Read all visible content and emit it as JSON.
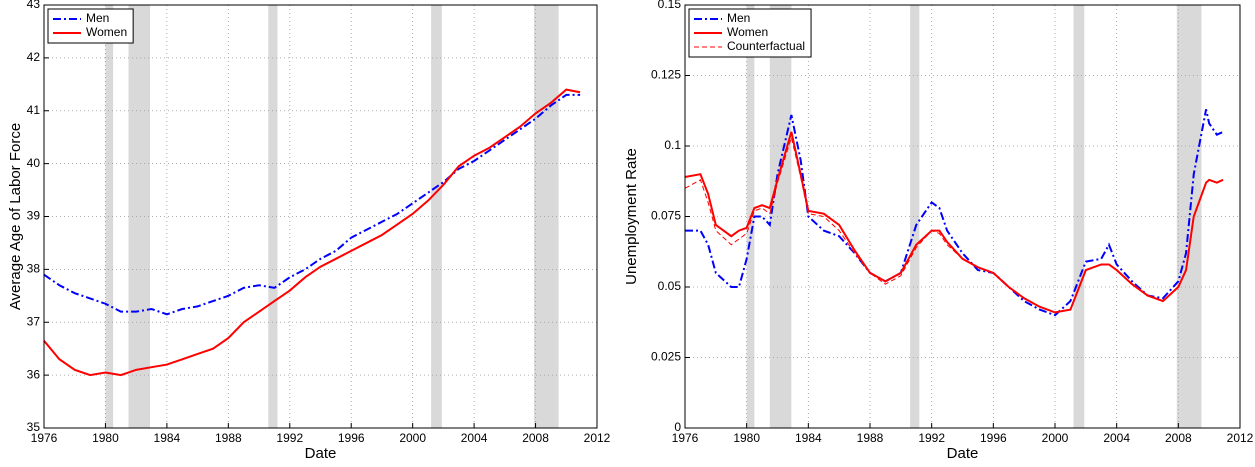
{
  "chart_data": [
    {
      "type": "line",
      "xlabel": "Date",
      "ylabel": "Average Age of Labor Force",
      "xlim": [
        1976,
        2012
      ],
      "xticks": [
        1976,
        1980,
        1984,
        1988,
        1992,
        1996,
        2000,
        2004,
        2008,
        2012
      ],
      "ylim": [
        35,
        43
      ],
      "yticks": [
        35,
        36,
        37,
        38,
        39,
        40,
        41,
        42,
        43
      ],
      "grid": true,
      "legend": "upper left",
      "recession_color": "#d9d9d9",
      "recessions": [
        [
          1980.0,
          1980.5
        ],
        [
          1981.5,
          1982.9
        ],
        [
          1990.6,
          1991.2
        ],
        [
          2001.2,
          2001.9
        ],
        [
          2007.9,
          2009.5
        ]
      ],
      "x": [
        1976,
        1977,
        1978,
        1979,
        1980,
        1981,
        1982,
        1983,
        1984,
        1985,
        1986,
        1987,
        1988,
        1989,
        1990,
        1991,
        1992,
        1993,
        1994,
        1995,
        1996,
        1997,
        1998,
        1999,
        2000,
        2001,
        2002,
        2003,
        2004,
        2005,
        2006,
        2007,
        2008,
        2009,
        2010,
        2010.9
      ],
      "series": [
        {
          "name": "Men",
          "color": "#0000ff",
          "style": "dashdot",
          "values": [
            37.9,
            37.7,
            37.55,
            37.45,
            37.35,
            37.2,
            37.2,
            37.25,
            37.15,
            37.25,
            37.3,
            37.4,
            37.5,
            37.65,
            37.7,
            37.65,
            37.85,
            38.0,
            38.2,
            38.35,
            38.6,
            38.75,
            38.9,
            39.05,
            39.25,
            39.45,
            39.65,
            39.9,
            40.05,
            40.25,
            40.45,
            40.65,
            40.85,
            41.1,
            41.3,
            41.3
          ]
        },
        {
          "name": "Women",
          "color": "#ff0000",
          "style": "solid",
          "values": [
            36.65,
            36.3,
            36.1,
            36.0,
            36.05,
            36.0,
            36.1,
            36.15,
            36.2,
            36.3,
            36.4,
            36.5,
            36.7,
            37.0,
            37.2,
            37.4,
            37.6,
            37.85,
            38.05,
            38.2,
            38.35,
            38.5,
            38.65,
            38.85,
            39.05,
            39.3,
            39.6,
            39.95,
            40.15,
            40.3,
            40.5,
            40.7,
            40.95,
            41.15,
            41.4,
            41.35
          ]
        }
      ]
    },
    {
      "type": "line",
      "xlabel": "Date",
      "ylabel": "Unemployment Rate",
      "xlim": [
        1976,
        2012
      ],
      "xticks": [
        1976,
        1980,
        1984,
        1988,
        1992,
        1996,
        2000,
        2004,
        2008,
        2012
      ],
      "ylim": [
        0,
        0.15
      ],
      "yticks": [
        0,
        0.025,
        0.05,
        0.075,
        0.1,
        0.125,
        0.15
      ],
      "grid": true,
      "legend": "upper left",
      "recession_color": "#d9d9d9",
      "recessions": [
        [
          1980.0,
          1980.5
        ],
        [
          1981.5,
          1982.9
        ],
        [
          1990.6,
          1991.2
        ],
        [
          2001.2,
          2001.9
        ],
        [
          2007.9,
          2009.5
        ]
      ],
      "x": [
        1976,
        1977,
        1977.5,
        1978,
        1979,
        1979.5,
        1980,
        1980.5,
        1981,
        1981.5,
        1982,
        1982.9,
        1983.5,
        1984,
        1985,
        1986,
        1987,
        1988,
        1989,
        1990,
        1991,
        1992,
        1992.5,
        1993,
        1994,
        1995,
        1996,
        1997,
        1998,
        1999,
        2000,
        2001,
        2002,
        2003,
        2003.5,
        2004,
        2005,
        2006,
        2007,
        2008,
        2008.5,
        2009,
        2009.8,
        2010,
        2010.5,
        2010.9
      ],
      "series": [
        {
          "name": "Men",
          "color": "#0000ff",
          "style": "dashdot",
          "values": [
            0.07,
            0.07,
            0.065,
            0.055,
            0.05,
            0.05,
            0.06,
            0.075,
            0.075,
            0.072,
            0.09,
            0.111,
            0.095,
            0.075,
            0.07,
            0.068,
            0.062,
            0.055,
            0.052,
            0.055,
            0.072,
            0.08,
            0.078,
            0.07,
            0.062,
            0.056,
            0.055,
            0.05,
            0.045,
            0.042,
            0.04,
            0.045,
            0.059,
            0.06,
            0.065,
            0.058,
            0.052,
            0.047,
            0.046,
            0.052,
            0.062,
            0.09,
            0.113,
            0.108,
            0.104,
            0.105
          ]
        },
        {
          "name": "Women",
          "color": "#ff0000",
          "style": "solid",
          "values": [
            0.089,
            0.09,
            0.083,
            0.072,
            0.068,
            0.07,
            0.071,
            0.078,
            0.079,
            0.078,
            0.088,
            0.105,
            0.09,
            0.077,
            0.076,
            0.072,
            0.063,
            0.055,
            0.052,
            0.055,
            0.065,
            0.07,
            0.07,
            0.066,
            0.06,
            0.057,
            0.055,
            0.05,
            0.046,
            0.043,
            0.041,
            0.042,
            0.056,
            0.058,
            0.058,
            0.056,
            0.051,
            0.047,
            0.045,
            0.05,
            0.056,
            0.075,
            0.087,
            0.088,
            0.087,
            0.088
          ]
        },
        {
          "name": "Counterfactual",
          "color": "#ff0000",
          "style": "dashed",
          "values": [
            0.085,
            0.088,
            0.08,
            0.07,
            0.065,
            0.067,
            0.069,
            0.077,
            0.078,
            0.076,
            0.087,
            0.103,
            0.089,
            0.076,
            0.075,
            0.07,
            0.062,
            0.055,
            0.051,
            0.054,
            0.064,
            0.07,
            0.069,
            0.065,
            0.06,
            0.057,
            0.055,
            0.05,
            0.046,
            0.043,
            0.041,
            0.042,
            0.056,
            0.058,
            0.058,
            0.056,
            0.051,
            0.047,
            0.045,
            0.05,
            0.056,
            0.075,
            0.087,
            0.088,
            0.087,
            0.088
          ]
        }
      ]
    }
  ]
}
